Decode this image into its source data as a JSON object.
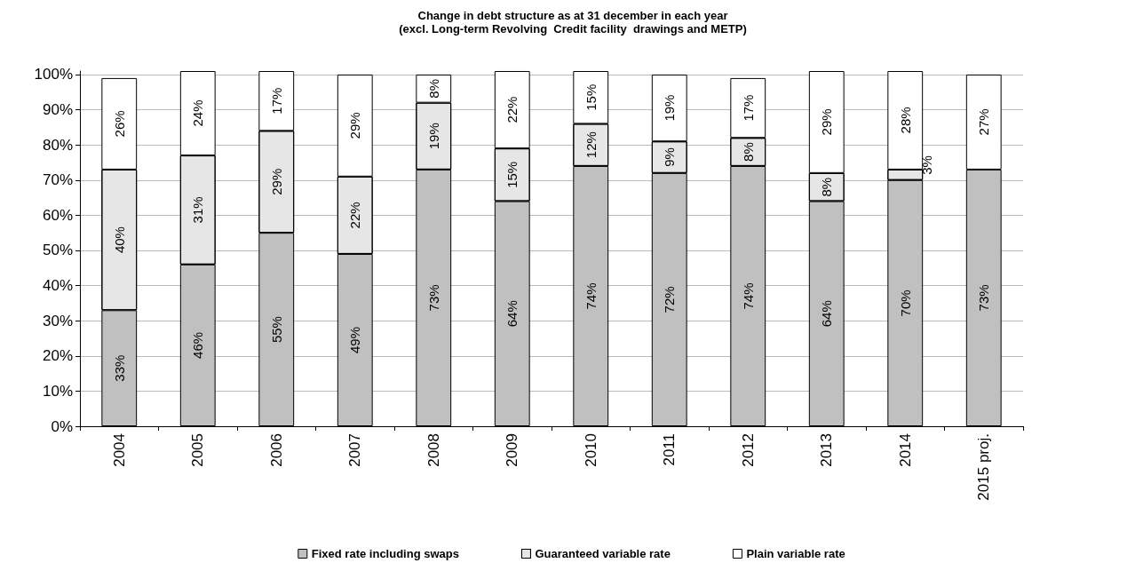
{
  "chart_data": {
    "type": "bar",
    "stacked": true,
    "title": "Change in debt structure as at 31 december in each year",
    "subtitle": "(excl. Long-term Revolving  Credit facility  drawings and METP)",
    "categories": [
      "2004",
      "2005",
      "2006",
      "2007",
      "2008",
      "2009",
      "2010",
      "2011",
      "2012",
      "2013",
      "2014",
      "2015 proj."
    ],
    "series": [
      {
        "name": "Fixed rate including swaps",
        "color": "#c0c0c0",
        "values": [
          33,
          46,
          55,
          49,
          73,
          64,
          74,
          72,
          74,
          64,
          70,
          73
        ],
        "value_labels": [
          "33%",
          "46%",
          "55%",
          "49%",
          "73%",
          "64%",
          "74%",
          "72%",
          "74%",
          "64%",
          "70%",
          "73%"
        ]
      },
      {
        "name": "Guaranteed variable rate",
        "color": "#e6e6e6",
        "values": [
          40,
          31,
          29,
          22,
          19,
          15,
          12,
          9,
          8,
          8,
          3,
          null
        ],
        "value_labels": [
          "40%",
          "31%",
          "29%",
          "22%",
          "19%",
          "15%",
          "12%",
          "9%",
          "8%",
          "8%",
          "3%",
          null
        ]
      },
      {
        "name": "Plain variable rate",
        "color": "#ffffff",
        "values": [
          26,
          24,
          17,
          29,
          8,
          22,
          15,
          19,
          17,
          29,
          28,
          27
        ],
        "value_labels": [
          "26%",
          "24%",
          "17%",
          "29%",
          "8%",
          "22%",
          "15%",
          "19%",
          "17%",
          "29%",
          "28%",
          "27%"
        ]
      }
    ],
    "ylim": [
      0,
      101
    ],
    "yticks": [
      {
        "value": 0,
        "label": "0%"
      },
      {
        "value": 10,
        "label": "10%"
      },
      {
        "value": 20,
        "label": "20%"
      },
      {
        "value": 30,
        "label": "30%"
      },
      {
        "value": 40,
        "label": "40%"
      },
      {
        "value": 50,
        "label": "50%"
      },
      {
        "value": 60,
        "label": "60%"
      },
      {
        "value": 70,
        "label": "70%"
      },
      {
        "value": 80,
        "label": "80%"
      },
      {
        "value": 90,
        "label": "90%"
      },
      {
        "value": 100,
        "label": "100%"
      }
    ],
    "grid": "y",
    "legend": "bottom"
  }
}
